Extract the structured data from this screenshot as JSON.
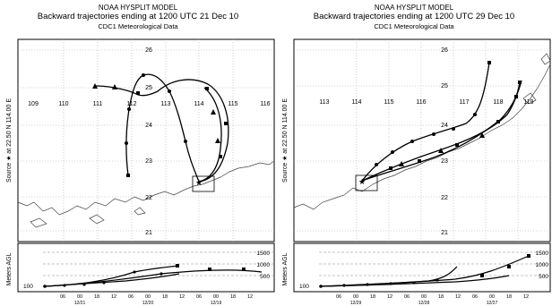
{
  "panels": [
    {
      "id": "left",
      "header": {
        "model": "NOAA HYSPLIT MODEL",
        "title": "Backward trajectories ending at 1200 UTC 21 Dec 10",
        "data_source": "CDC1 Meteorological Data"
      },
      "y_axis_label": "Source ★ at  22.50 N  114.00 E",
      "longitude_labels": [
        "109",
        "110",
        "111",
        "112",
        "113",
        "114",
        "115",
        "116"
      ],
      "latitude_labels": [
        "21",
        "22",
        "23",
        "24",
        "25",
        "26"
      ],
      "altitude_axis_label": "Meters AGL",
      "altitude_ticks": [
        "1500",
        "1000",
        "500"
      ],
      "altitude_base": "100",
      "time_ticks": [
        "06",
        "00",
        "18",
        "12",
        "06",
        "00",
        "18",
        "12",
        "06",
        "00",
        "18",
        "12"
      ],
      "date_labels": [
        "12/21",
        "12/20",
        "12/19"
      ]
    },
    {
      "id": "right",
      "header": {
        "model": "NOAA HYSPLIT MODEL",
        "title": "Backward trajectories ending at 1200 UTC 29 Dec 10",
        "data_source": "CDC1 Meteorological Data"
      },
      "y_axis_label": "Source ★ at  22.50 N  114.00 E",
      "longitude_labels": [
        "113",
        "114",
        "115",
        "116",
        "117",
        "118",
        "119"
      ],
      "latitude_labels": [
        "21",
        "22",
        "23",
        "24",
        "25",
        "26"
      ],
      "altitude_axis_label": "Meters AGL",
      "altitude_ticks": [
        "1500",
        "1000",
        "500"
      ],
      "altitude_base": "100",
      "time_ticks": [
        "06",
        "00",
        "18",
        "12",
        "06",
        "00",
        "18",
        "12",
        "06",
        "00",
        "18",
        "12"
      ],
      "date_labels": [
        "12/29",
        "12/28",
        "12/27"
      ]
    }
  ]
}
